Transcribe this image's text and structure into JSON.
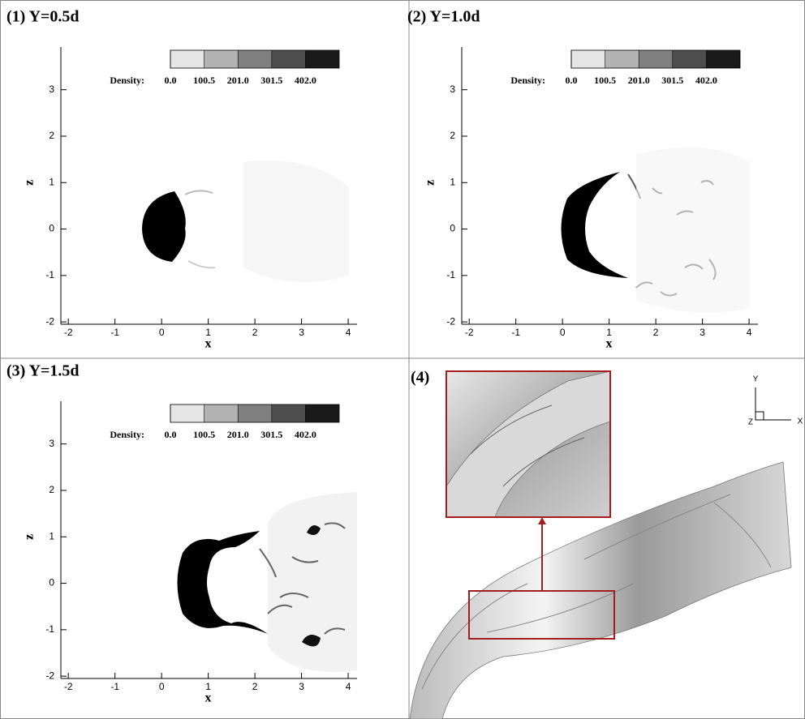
{
  "chart_data": [
    {
      "type": "contour",
      "title": "(1)  Y=0.5d",
      "xlabel": "x",
      "ylabel": "z",
      "xlim": [
        -2.16,
        4.19
      ],
      "ylim": [
        -2.05,
        3.92
      ],
      "xticks": [
        -2,
        -1,
        0,
        1,
        2,
        3,
        4
      ],
      "yticks": [
        -2,
        -1,
        0,
        1,
        2,
        3
      ],
      "colorbar": {
        "label": "Density:",
        "range": [
          0,
          502.5
        ],
        "colormap": [
          "#ffffff",
          "#000000"
        ],
        "ticks": [
          {
            "value": 0,
            "label": "0.0"
          },
          {
            "value": 100.5,
            "label": "100.5"
          },
          {
            "value": 201,
            "label": "201.0"
          },
          {
            "value": 301.5,
            "label": "301.5"
          },
          {
            "value": 402,
            "label": "402.0"
          }
        ]
      }
    },
    {
      "type": "contour",
      "title": "(2)  Y=1.0d",
      "xlabel": "x",
      "ylabel": "z",
      "xlim": [
        -2.16,
        4.19
      ],
      "ylim": [
        -2.05,
        3.92
      ],
      "xticks": [
        -2,
        -1,
        0,
        1,
        2,
        3,
        4
      ],
      "yticks": [
        -2,
        -1,
        0,
        1,
        2,
        3
      ],
      "colorbar": {
        "label": "Density:",
        "range": [
          0,
          502.5
        ],
        "colormap": [
          "#ffffff",
          "#000000"
        ],
        "ticks": [
          {
            "value": 0,
            "label": "0.0"
          },
          {
            "value": 100.5,
            "label": "100.5"
          },
          {
            "value": 201,
            "label": "201.0"
          },
          {
            "value": 301.5,
            "label": "301.5"
          },
          {
            "value": 402,
            "label": "402.0"
          }
        ]
      }
    },
    {
      "type": "contour",
      "title": "(3)  Y=1.5d",
      "xlabel": "x",
      "ylabel": "z",
      "xlim": [
        -2.16,
        4.19
      ],
      "ylim": [
        -2.05,
        3.92
      ],
      "xticks": [
        -2,
        -1,
        0,
        1,
        2,
        3,
        4
      ],
      "yticks": [
        -2,
        -1,
        0,
        1,
        2,
        3
      ],
      "colorbar": {
        "label": "Density:",
        "range": [
          0,
          502.5
        ],
        "colormap": [
          "#ffffff",
          "#000000"
        ],
        "ticks": [
          {
            "value": 0,
            "label": "0.0"
          },
          {
            "value": 100.5,
            "label": "100.5"
          },
          {
            "value": 201,
            "label": "201.0"
          },
          {
            "value": 301.5,
            "label": "301.5"
          },
          {
            "value": 402,
            "label": "402.0"
          }
        ]
      }
    }
  ],
  "panel4": {
    "label": "(4)",
    "triad": {
      "y": "Y",
      "x": "X",
      "z": "Z"
    }
  }
}
